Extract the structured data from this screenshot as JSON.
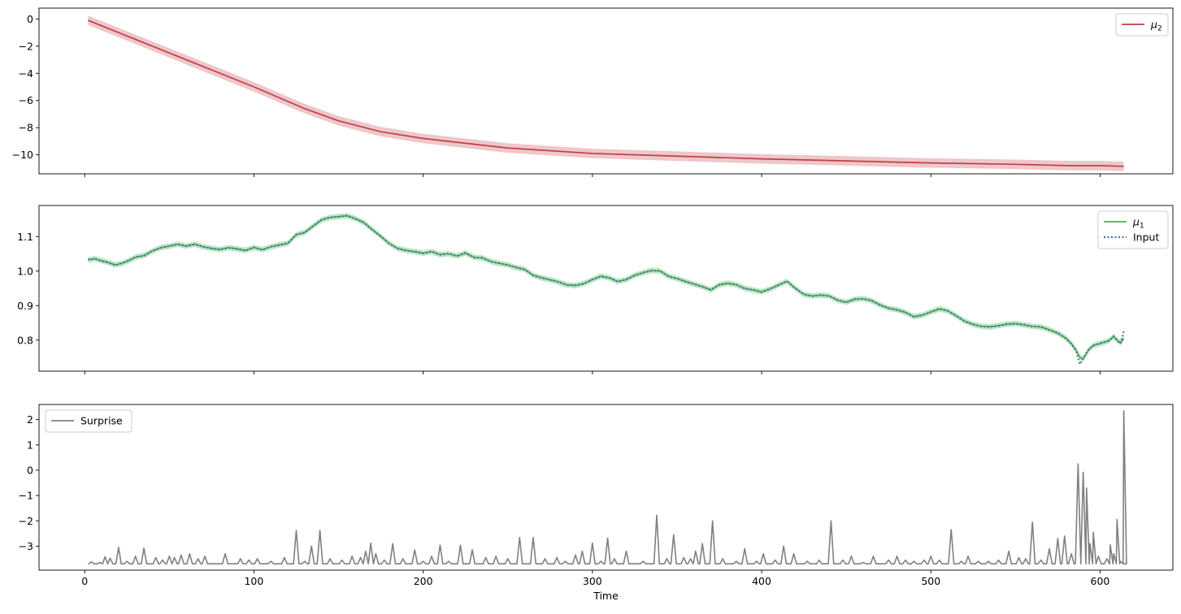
{
  "colors": {
    "mu2": "#c0404a",
    "mu2_band": "#e8b4b8",
    "mu1": "#55aa55",
    "mu1_band": "#a8e0b0",
    "input": "#4a6fa8",
    "surprise": "#808080"
  },
  "chart_data": [
    {
      "type": "line",
      "ylim": [
        -11.4,
        0.8
      ],
      "yticks": [
        0,
        -2,
        -4,
        -6,
        -8,
        -10
      ],
      "ytick_labels": [
        "0",
        "−2",
        "−4",
        "−6",
        "−8",
        "−10"
      ],
      "xlim": [
        -27,
        643
      ],
      "xticks": [
        0,
        100,
        200,
        300,
        400,
        500,
        600
      ],
      "show_xtick_labels": false,
      "legend": "top-right",
      "series": [
        {
          "name": "μ₂",
          "name_base": "μ",
          "name_sub": "2",
          "color": "#c0404a",
          "band_halfwidth": 0.35,
          "x": [
            2,
            50,
            100,
            130,
            150,
            175,
            200,
            250,
            300,
            350,
            400,
            450,
            500,
            550,
            575,
            585,
            600,
            614
          ],
          "y": [
            -0.1,
            -2.5,
            -5.0,
            -6.6,
            -7.5,
            -8.3,
            -8.8,
            -9.5,
            -9.9,
            -10.1,
            -10.3,
            -10.45,
            -10.6,
            -10.7,
            -10.78,
            -10.8,
            -10.8,
            -10.85
          ]
        }
      ]
    },
    {
      "type": "line",
      "ylim": [
        0.71,
        1.19
      ],
      "yticks": [
        0.8,
        0.9,
        1.0,
        1.1
      ],
      "ytick_labels": [
        "0.8",
        "0.9",
        "1.0",
        "1.1"
      ],
      "xlim": [
        -27,
        643
      ],
      "xticks": [
        0,
        100,
        200,
        300,
        400,
        500,
        600
      ],
      "show_xtick_labels": false,
      "legend": "top-right",
      "band_halfwidth": 0.008,
      "x": [
        2,
        6,
        10,
        14,
        18,
        22,
        26,
        30,
        35,
        40,
        45,
        50,
        55,
        60,
        65,
        70,
        75,
        80,
        85,
        90,
        95,
        100,
        105,
        110,
        115,
        120,
        125,
        130,
        135,
        140,
        145,
        150,
        155,
        160,
        165,
        170,
        175,
        180,
        185,
        190,
        195,
        200,
        205,
        210,
        215,
        220,
        225,
        230,
        235,
        240,
        245,
        250,
        255,
        260,
        265,
        270,
        275,
        280,
        285,
        290,
        295,
        300,
        305,
        310,
        315,
        320,
        325,
        330,
        335,
        340,
        345,
        350,
        355,
        360,
        365,
        370,
        375,
        380,
        385,
        390,
        395,
        400,
        405,
        410,
        415,
        420,
        425,
        430,
        435,
        440,
        445,
        450,
        455,
        460,
        465,
        470,
        475,
        480,
        485,
        490,
        495,
        500,
        505,
        510,
        515,
        520,
        525,
        530,
        535,
        540,
        545,
        550,
        555,
        560,
        565,
        570,
        575,
        580,
        583,
        586,
        588,
        590,
        593,
        596,
        600,
        605,
        608,
        610,
        612,
        614
      ],
      "series": [
        {
          "name": "μ₁",
          "name_base": "μ",
          "name_sub": "1",
          "color": "#55aa55",
          "y": [
            1.032,
            1.036,
            1.03,
            1.025,
            1.018,
            1.022,
            1.03,
            1.04,
            1.045,
            1.058,
            1.068,
            1.072,
            1.078,
            1.072,
            1.078,
            1.07,
            1.066,
            1.062,
            1.068,
            1.064,
            1.06,
            1.068,
            1.062,
            1.07,
            1.076,
            1.08,
            1.105,
            1.112,
            1.13,
            1.148,
            1.155,
            1.158,
            1.16,
            1.152,
            1.14,
            1.12,
            1.1,
            1.08,
            1.065,
            1.06,
            1.056,
            1.052,
            1.056,
            1.048,
            1.05,
            1.044,
            1.052,
            1.04,
            1.038,
            1.028,
            1.022,
            1.018,
            1.01,
            1.005,
            0.988,
            0.98,
            0.975,
            0.968,
            0.96,
            0.958,
            0.964,
            0.975,
            0.985,
            0.98,
            0.97,
            0.975,
            0.988,
            0.995,
            1.002,
            1.0,
            0.985,
            0.978,
            0.97,
            0.962,
            0.955,
            0.945,
            0.96,
            0.965,
            0.96,
            0.95,
            0.945,
            0.94,
            0.948,
            0.96,
            0.97,
            0.95,
            0.932,
            0.928,
            0.93,
            0.928,
            0.915,
            0.91,
            0.918,
            0.92,
            0.914,
            0.902,
            0.892,
            0.888,
            0.88,
            0.868,
            0.872,
            0.882,
            0.89,
            0.885,
            0.87,
            0.855,
            0.845,
            0.84,
            0.838,
            0.842,
            0.846,
            0.848,
            0.844,
            0.84,
            0.838,
            0.83,
            0.82,
            0.805,
            0.79,
            0.77,
            0.75,
            0.745,
            0.77,
            0.785,
            0.79,
            0.798,
            0.81,
            0.8,
            0.792,
            0.805
          ]
        },
        {
          "name": "Input",
          "color": "#4a6fa8",
          "dotted": true,
          "y": [
            1.034,
            1.035,
            1.029,
            1.024,
            1.017,
            1.023,
            1.031,
            1.041,
            1.044,
            1.059,
            1.067,
            1.073,
            1.077,
            1.073,
            1.077,
            1.071,
            1.065,
            1.063,
            1.067,
            1.065,
            1.059,
            1.069,
            1.061,
            1.071,
            1.075,
            1.081,
            1.106,
            1.111,
            1.131,
            1.149,
            1.156,
            1.157,
            1.161,
            1.151,
            1.141,
            1.119,
            1.101,
            1.079,
            1.066,
            1.059,
            1.057,
            1.051,
            1.057,
            1.047,
            1.051,
            1.043,
            1.053,
            1.039,
            1.039,
            1.027,
            1.023,
            1.017,
            1.011,
            1.004,
            0.987,
            0.981,
            0.974,
            0.969,
            0.959,
            0.959,
            0.963,
            0.976,
            0.984,
            0.981,
            0.969,
            0.976,
            0.987,
            0.996,
            1.001,
            1.001,
            0.984,
            0.979,
            0.969,
            0.963,
            0.954,
            0.946,
            0.961,
            0.964,
            0.961,
            0.949,
            0.946,
            0.939,
            0.949,
            0.959,
            0.971,
            0.949,
            0.933,
            0.927,
            0.931,
            0.927,
            0.916,
            0.909,
            0.919,
            0.919,
            0.915,
            0.901,
            0.893,
            0.887,
            0.881,
            0.867,
            0.873,
            0.881,
            0.891,
            0.884,
            0.871,
            0.854,
            0.846,
            0.839,
            0.839,
            0.841,
            0.847,
            0.847,
            0.845,
            0.839,
            0.839,
            0.829,
            0.821,
            0.804,
            0.789,
            0.765,
            0.73,
            0.748,
            0.772,
            0.784,
            0.791,
            0.797,
            0.811,
            0.799,
            0.79,
            0.825
          ]
        }
      ]
    },
    {
      "type": "line",
      "ylim": [
        -3.95,
        2.6
      ],
      "yticks": [
        2,
        1,
        0,
        -1,
        -2,
        -3
      ],
      "ytick_labels": [
        "2",
        "1",
        "0",
        "−1",
        "−2",
        "−3"
      ],
      "xlim": [
        -27,
        643
      ],
      "xticks": [
        0,
        100,
        200,
        300,
        400,
        500,
        600
      ],
      "xtick_labels": [
        "0",
        "100",
        "200",
        "300",
        "400",
        "500",
        "600"
      ],
      "xlabel": "Time",
      "legend": "top-left",
      "series": [
        {
          "name": "Surprise",
          "color": "#808080",
          "baseline": -3.7,
          "spikes": [
            [
              4,
              -3.62
            ],
            [
              9,
              -3.65
            ],
            [
              12,
              -3.42
            ],
            [
              15,
              -3.48
            ],
            [
              20,
              -3.05
            ],
            [
              25,
              -3.6
            ],
            [
              30,
              -3.4
            ],
            [
              35,
              -3.08
            ],
            [
              42,
              -3.45
            ],
            [
              46,
              -3.55
            ],
            [
              50,
              -3.4
            ],
            [
              53,
              -3.45
            ],
            [
              57,
              -3.35
            ],
            [
              62,
              -3.3
            ],
            [
              67,
              -3.5
            ],
            [
              71,
              -3.4
            ],
            [
              83,
              -3.3
            ],
            [
              92,
              -3.5
            ],
            [
              97,
              -3.55
            ],
            [
              102,
              -3.5
            ],
            [
              110,
              -3.6
            ],
            [
              118,
              -3.45
            ],
            [
              125,
              -2.38
            ],
            [
              130,
              -3.6
            ],
            [
              134,
              -3.0
            ],
            [
              139,
              -2.38
            ],
            [
              145,
              -3.5
            ],
            [
              152,
              -3.55
            ],
            [
              158,
              -3.4
            ],
            [
              163,
              -3.45
            ],
            [
              166,
              -3.2
            ],
            [
              169,
              -2.88
            ],
            [
              172,
              -3.3
            ],
            [
              177,
              -3.55
            ],
            [
              182,
              -2.9
            ],
            [
              188,
              -3.5
            ],
            [
              195,
              -3.15
            ],
            [
              200,
              -3.6
            ],
            [
              205,
              -3.4
            ],
            [
              210,
              -2.96
            ],
            [
              215,
              -3.6
            ],
            [
              222,
              -2.96
            ],
            [
              229,
              -3.15
            ],
            [
              237,
              -3.45
            ],
            [
              243,
              -3.4
            ],
            [
              250,
              -3.5
            ],
            [
              257,
              -2.66
            ],
            [
              265,
              -2.66
            ],
            [
              272,
              -3.5
            ],
            [
              279,
              -3.45
            ],
            [
              284,
              -3.6
            ],
            [
              290,
              -3.35
            ],
            [
              294,
              -3.2
            ],
            [
              300,
              -2.88
            ],
            [
              305,
              -3.6
            ],
            [
              309,
              -2.68
            ],
            [
              313,
              -3.5
            ],
            [
              320,
              -3.2
            ],
            [
              330,
              -3.6
            ],
            [
              338,
              -1.78
            ],
            [
              344,
              -3.5
            ],
            [
              348,
              -2.55
            ],
            [
              354,
              -3.45
            ],
            [
              358,
              -3.5
            ],
            [
              361,
              -3.2
            ],
            [
              365,
              -2.9
            ],
            [
              371,
              -2.0
            ],
            [
              377,
              -3.5
            ],
            [
              385,
              -3.6
            ],
            [
              390,
              -3.1
            ],
            [
              397,
              -3.6
            ],
            [
              401,
              -3.3
            ],
            [
              408,
              -3.55
            ],
            [
              413,
              -3.0
            ],
            [
              419,
              -3.3
            ],
            [
              427,
              -3.6
            ],
            [
              434,
              -3.55
            ],
            [
              441,
              -2.0
            ],
            [
              448,
              -3.55
            ],
            [
              453,
              -3.4
            ],
            [
              460,
              -3.65
            ],
            [
              466,
              -3.4
            ],
            [
              475,
              -3.55
            ],
            [
              480,
              -3.4
            ],
            [
              485,
              -3.55
            ],
            [
              490,
              -3.6
            ],
            [
              496,
              -3.55
            ],
            [
              500,
              -3.4
            ],
            [
              505,
              -3.55
            ],
            [
              512,
              -2.35
            ],
            [
              518,
              -3.6
            ],
            [
              522,
              -3.4
            ],
            [
              528,
              -3.6
            ],
            [
              534,
              -3.6
            ],
            [
              540,
              -3.55
            ],
            [
              546,
              -3.2
            ],
            [
              552,
              -3.45
            ],
            [
              556,
              -3.5
            ],
            [
              560,
              -2.05
            ],
            [
              565,
              -3.55
            ],
            [
              570,
              -3.1
            ],
            [
              575,
              -2.7
            ],
            [
              579,
              -2.6
            ],
            [
              583,
              -3.3
            ],
            [
              587,
              0.25
            ],
            [
              590,
              -0.08
            ],
            [
              592,
              -0.7
            ],
            [
              594,
              -2.9
            ],
            [
              596,
              -2.45
            ],
            [
              599,
              -3.4
            ],
            [
              604,
              -3.5
            ],
            [
              606,
              -2.95
            ],
            [
              608,
              -3.3
            ],
            [
              610,
              -1.95
            ],
            [
              612,
              -3.6
            ],
            [
              614,
              2.35
            ]
          ]
        }
      ]
    }
  ]
}
